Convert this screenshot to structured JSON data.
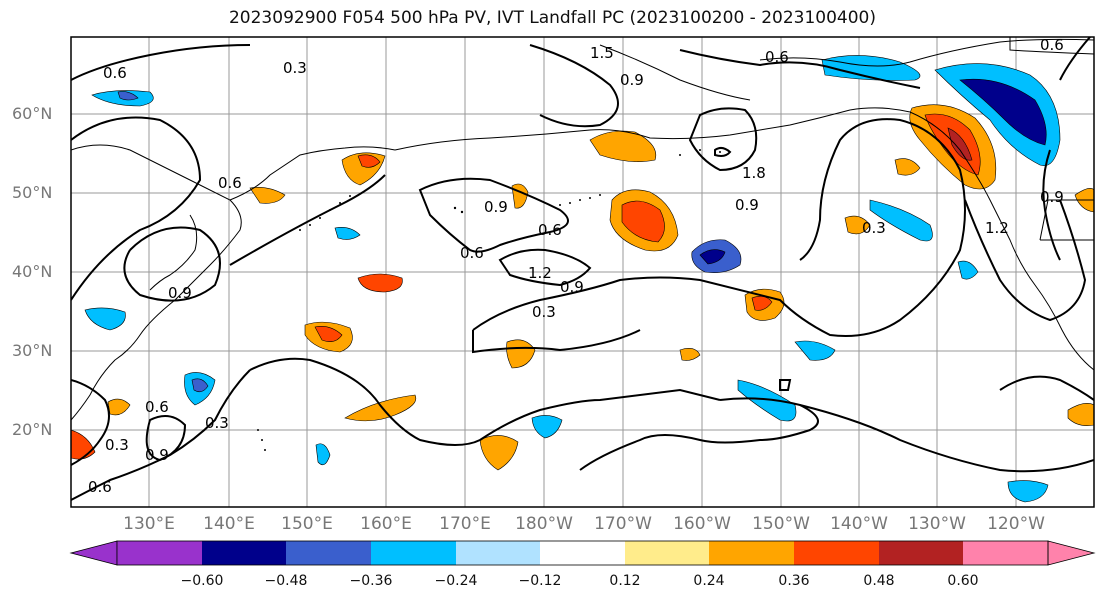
{
  "title": "2023092900 F054 500 hPa PV, IVT Landfall PC (2023100200 - 2023100400)",
  "lat_labels": [
    "60°N",
    "50°N",
    "40°N",
    "30°N",
    "20°N"
  ],
  "lon_labels": [
    "130°E",
    "140°E",
    "150°E",
    "160°E",
    "170°E",
    "180°W",
    "170°W",
    "160°W",
    "150°W",
    "140°W",
    "130°W",
    "120°W"
  ],
  "contour_labels": [
    "0.6",
    "0.3",
    "1.5",
    "0.9",
    "0.6",
    "0.6",
    "1.8",
    "0.9",
    "0.6",
    "0.9",
    "0.6",
    "1.2",
    "0.9",
    "0.3",
    "0.9",
    "0.6",
    "0.3",
    "0.9",
    "0.3",
    "0.3",
    "1.2",
    "0.9",
    "0.6",
    "0.6"
  ],
  "colorbar": {
    "ticks": [
      "−0.60",
      "−0.48",
      "−0.36",
      "−0.24",
      "−0.12",
      "0.12",
      "0.24",
      "0.36",
      "0.48",
      "0.60"
    ],
    "colors": [
      "#9932CC",
      "#00008B",
      "#3A5FCD",
      "#00BFFF",
      "#B0E2FF",
      "#FFFFFF",
      "#FFEC8B",
      "#FFA500",
      "#FF4500",
      "#B22222",
      "#FF82AB"
    ]
  },
  "colors": {
    "frame": "#000000",
    "grid": "#999999",
    "label_gray": "#777777"
  }
}
